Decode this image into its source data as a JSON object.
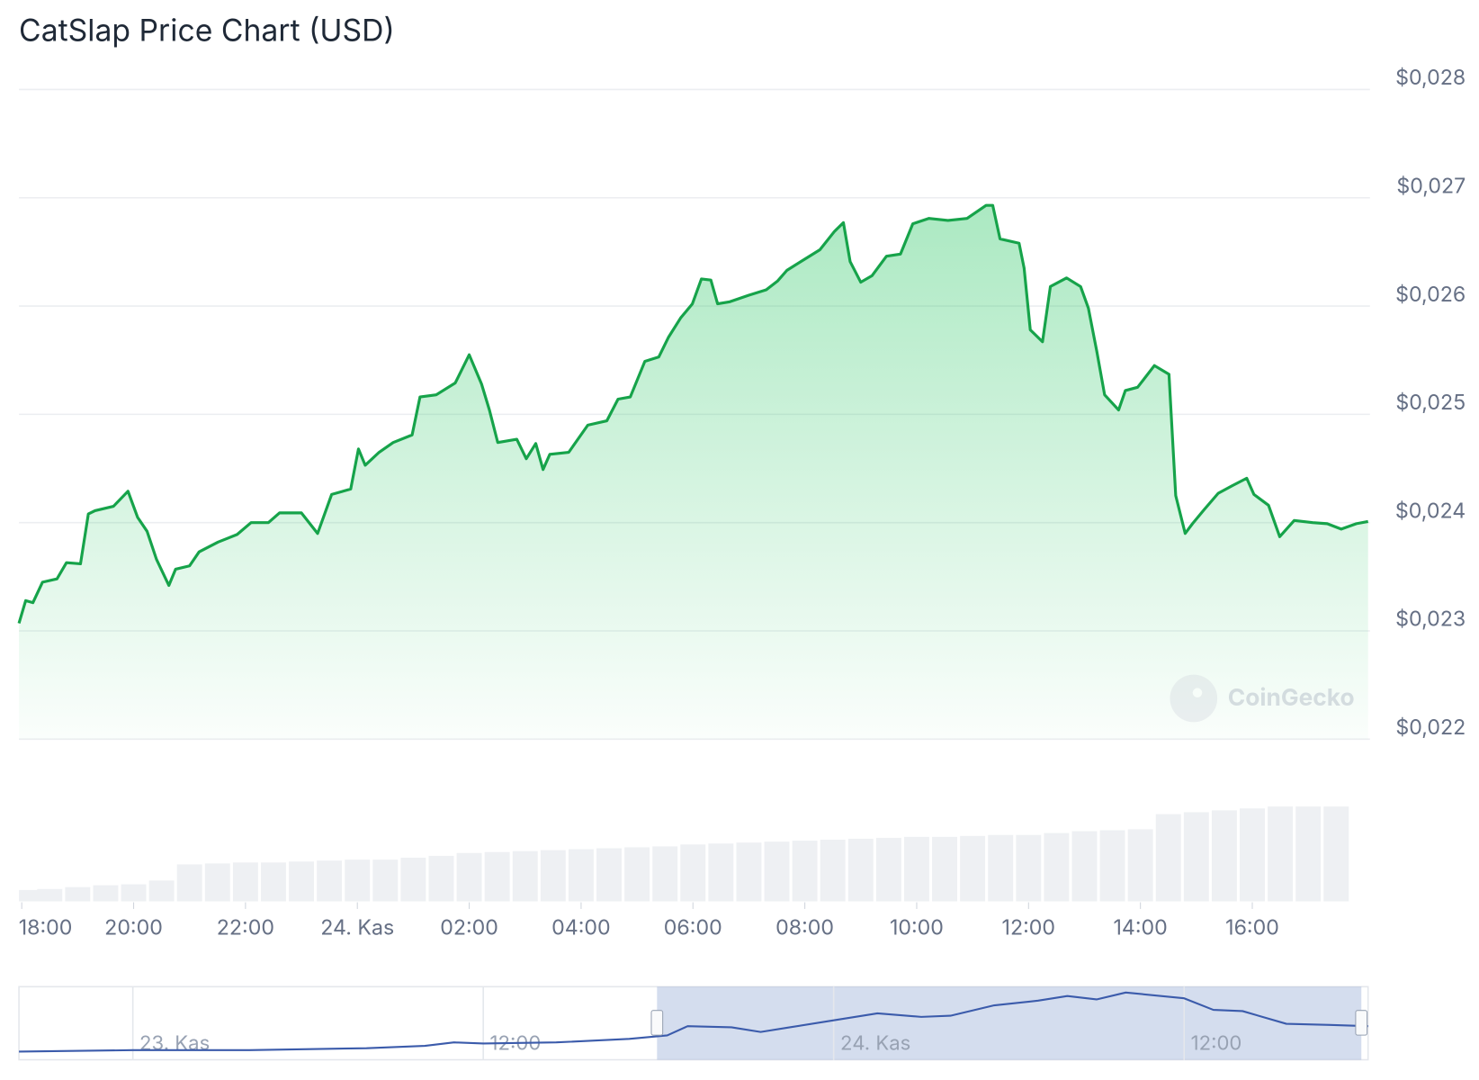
{
  "chart_data": {
    "type": "line",
    "title": "CatSlap Price Chart (USD)",
    "x": [
      17.95,
      18.07,
      18.2,
      18.37,
      18.63,
      18.8,
      19.05,
      19.19,
      19.31,
      19.64,
      19.9,
      20.07,
      20.24,
      20.41,
      20.63,
      20.75,
      21.0,
      21.17,
      21.51,
      21.85,
      22.1,
      22.41,
      22.61,
      23.0,
      23.29,
      23.54,
      23.88,
      24.02,
      24.14,
      24.39,
      24.64,
      24.98,
      25.12,
      25.41,
      25.75,
      26.0,
      26.22,
      26.36,
      26.51,
      26.85,
      27.02,
      27.19,
      27.32,
      27.44,
      27.78,
      28.12,
      28.46,
      28.66,
      28.88,
      29.14,
      29.39,
      29.56,
      29.78,
      29.99,
      30.15,
      30.32,
      30.44,
      30.66,
      31.0,
      31.31,
      31.51,
      31.68,
      32.02,
      32.27,
      32.53,
      32.69,
      32.81,
      33.0,
      33.2,
      33.46,
      33.71,
      33.93,
      34.22,
      34.56,
      34.9,
      35.24,
      35.36,
      35.49,
      35.83,
      35.92,
      36.03,
      36.25,
      36.39,
      36.68,
      36.93,
      37.07,
      37.22,
      37.36,
      37.61,
      37.73,
      37.95,
      38.25,
      38.51,
      38.63,
      38.8,
      38.93,
      39.14,
      39.39,
      39.64,
      39.9,
      40.03,
      40.29,
      40.49,
      40.75,
      41.08,
      41.34,
      41.59,
      41.86,
      42.07
    ],
    "series": [
      {
        "color": "#16a34a",
        "values": [
          0.02307,
          0.02328,
          0.02326,
          0.02345,
          0.02348,
          0.02363,
          0.02362,
          0.02408,
          0.02411,
          0.02415,
          0.02429,
          0.02405,
          0.02392,
          0.02366,
          0.02342,
          0.02357,
          0.0236,
          0.02373,
          0.02382,
          0.02389,
          0.024,
          0.024,
          0.02409,
          0.02409,
          0.0239,
          0.02426,
          0.02431,
          0.02468,
          0.02453,
          0.02465,
          0.02474,
          0.02481,
          0.02516,
          0.02518,
          0.02529,
          0.02555,
          0.02528,
          0.02504,
          0.02474,
          0.02477,
          0.02459,
          0.02473,
          0.02449,
          0.02463,
          0.02465,
          0.0249,
          0.02494,
          0.02514,
          0.02516,
          0.02549,
          0.02553,
          0.02571,
          0.02589,
          0.02602,
          0.02625,
          0.02624,
          0.02602,
          0.02604,
          0.0261,
          0.02615,
          0.02623,
          0.02633,
          0.02644,
          0.02652,
          0.02669,
          0.02677,
          0.02641,
          0.02622,
          0.02628,
          0.02646,
          0.02648,
          0.02676,
          0.02681,
          0.02679,
          0.02681,
          0.02693,
          0.02693,
          0.02662,
          0.02658,
          0.02635,
          0.02578,
          0.02567,
          0.02618,
          0.02626,
          0.02618,
          0.02598,
          0.02558,
          0.02518,
          0.02504,
          0.02522,
          0.02525,
          0.02545,
          0.02537,
          0.02425,
          0.0239,
          0.02399,
          0.02412,
          0.02427,
          0.02434,
          0.02441,
          0.02426,
          0.02416,
          0.02387,
          0.02402,
          0.024,
          0.02399,
          0.02394,
          0.02399,
          0.02401
        ]
      }
    ],
    "xlim": [
      17.95,
      42.07
    ],
    "xticks": [
      {
        "value": 18,
        "label": "18:00"
      },
      {
        "value": 20,
        "label": "20:00"
      },
      {
        "value": 22,
        "label": "22:00"
      },
      {
        "value": 24,
        "label": "24. Kas"
      },
      {
        "value": 26,
        "label": "02:00"
      },
      {
        "value": 28,
        "label": "04:00"
      },
      {
        "value": 30,
        "label": "06:00"
      },
      {
        "value": 32,
        "label": "08:00"
      },
      {
        "value": 34,
        "label": "10:00"
      },
      {
        "value": 36,
        "label": "12:00"
      },
      {
        "value": 38,
        "label": "14:00"
      },
      {
        "value": 40,
        "label": "16:00"
      }
    ],
    "ylim": [
      0.022,
      0.028
    ],
    "yticks": [
      {
        "value": 0.028,
        "label": "$0,028"
      },
      {
        "value": 0.027,
        "label": "$0,027"
      },
      {
        "value": 0.026,
        "label": "$0,026"
      },
      {
        "value": 0.025,
        "label": "$0,025"
      },
      {
        "value": 0.024,
        "label": "$0,024"
      },
      {
        "value": 0.023,
        "label": "$0,023"
      },
      {
        "value": 0.022,
        "label": "$0,022"
      }
    ],
    "grid": true,
    "watermark": "CoinGecko",
    "volume": {
      "color": "#eef0f3",
      "ylim": [
        0,
        105
      ],
      "x": [
        18.0,
        18.5,
        19.0,
        19.5,
        20.0,
        20.5,
        21.0,
        21.5,
        22.0,
        22.5,
        23.0,
        23.5,
        24.0,
        24.5,
        25.0,
        25.5,
        26.0,
        26.5,
        27.0,
        27.5,
        28.0,
        28.5,
        29.0,
        29.5,
        30.0,
        30.5,
        31.0,
        31.5,
        32.0,
        32.5,
        33.0,
        33.5,
        34.0,
        34.5,
        35.0,
        35.5,
        36.0,
        36.5,
        37.0,
        37.5,
        38.0,
        38.5,
        39.0,
        39.5,
        40.0,
        40.5,
        41.0,
        41.5
      ],
      "values": [
        12,
        13,
        15,
        17,
        18,
        22,
        39,
        40,
        41,
        41,
        42,
        43,
        44,
        44,
        46,
        48,
        51,
        52,
        53,
        54,
        55,
        56,
        57,
        58,
        60,
        61,
        62,
        63,
        64,
        65,
        66,
        67,
        68,
        68,
        69,
        70,
        70,
        72,
        74,
        75,
        76,
        92,
        94,
        96,
        98,
        100,
        100,
        100
      ]
    },
    "navigator": {
      "color": "#3b5bab",
      "xlim": [
        -3.9,
        42.3
      ],
      "ylim": [
        0.0212,
        0.0275
      ],
      "x": [
        -3.9,
        0,
        4,
        8,
        10,
        11,
        12,
        14.5,
        17,
        18.3,
        19,
        20.5,
        21.5,
        22.5,
        24,
        25.5,
        27,
        28,
        29.5,
        31,
        32,
        33,
        34,
        36,
        37,
        38,
        39.5,
        41,
        42.3
      ],
      "values": [
        0.0219,
        0.02203,
        0.02203,
        0.0222,
        0.0224,
        0.0227,
        0.0226,
        0.0227,
        0.023,
        0.0233,
        0.0241,
        0.024,
        0.0236,
        0.024,
        0.0246,
        0.0252,
        0.0249,
        0.025,
        0.0259,
        0.0263,
        0.0267,
        0.0264,
        0.027,
        0.0265,
        0.0255,
        0.0254,
        0.0243,
        0.0242,
        0.0241
      ],
      "xticks": [
        {
          "value": 0,
          "label": "23. Kas"
        },
        {
          "value": 12,
          "label": "12:00"
        },
        {
          "value": 24,
          "label": "24. Kas"
        },
        {
          "value": 36,
          "label": "12:00"
        }
      ]
    }
  }
}
